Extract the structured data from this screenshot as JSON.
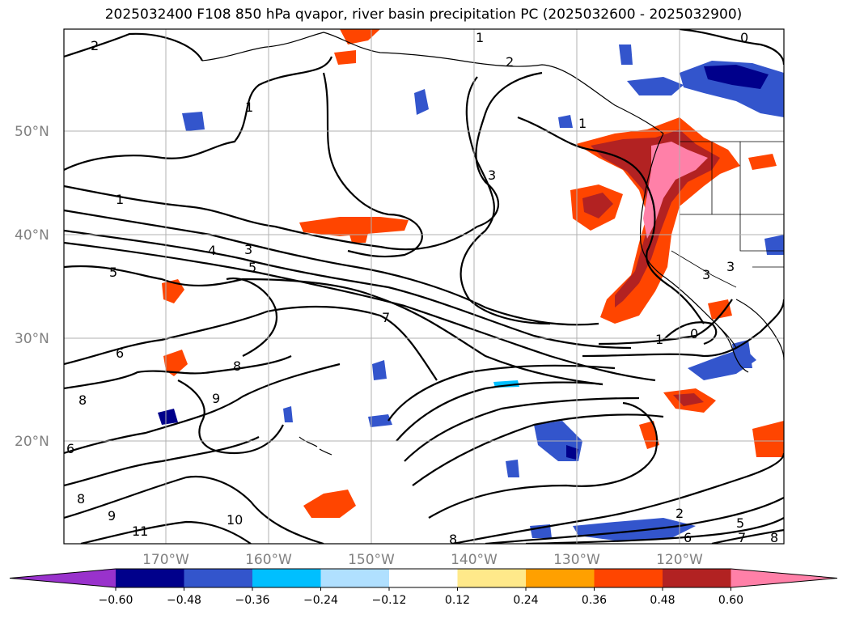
{
  "title": "2025032400 F108 850 hPa qvapor, river basin precipitation PC (2025032600 - 2025032900)",
  "lat_labels": [
    "50°N",
    "40°N",
    "30°N",
    "20°N"
  ],
  "lon_labels": [
    "170°W",
    "160°W",
    "150°W",
    "140°W",
    "130°W",
    "120°W"
  ],
  "colorbar": {
    "tick_labels": [
      "−0.60",
      "−0.48",
      "−0.36",
      "−0.24",
      "−0.12",
      "0.12",
      "0.24",
      "0.36",
      "0.48",
      "0.60"
    ],
    "colors": [
      "#9932cc",
      "#00008b",
      "#3355cc",
      "#00bfff",
      "#b0e0ff",
      "#ffffff",
      "#ffe98a",
      "#ffa000",
      "#ff4500",
      "#b22222",
      "#ff80a8"
    ]
  },
  "contour_labels": [
    "2",
    "1",
    "2",
    "1",
    "0",
    "1",
    "3",
    "1",
    "4",
    "3",
    "5",
    "5",
    "7",
    "6",
    "8",
    "8",
    "9",
    "6",
    "8",
    "9",
    "11",
    "10",
    "8",
    "3",
    "3",
    "1",
    "0",
    "2",
    "5",
    "7",
    "8",
    "6"
  ],
  "colors": {
    "map_border": "#000000",
    "grid": "#b0b0b0"
  }
}
